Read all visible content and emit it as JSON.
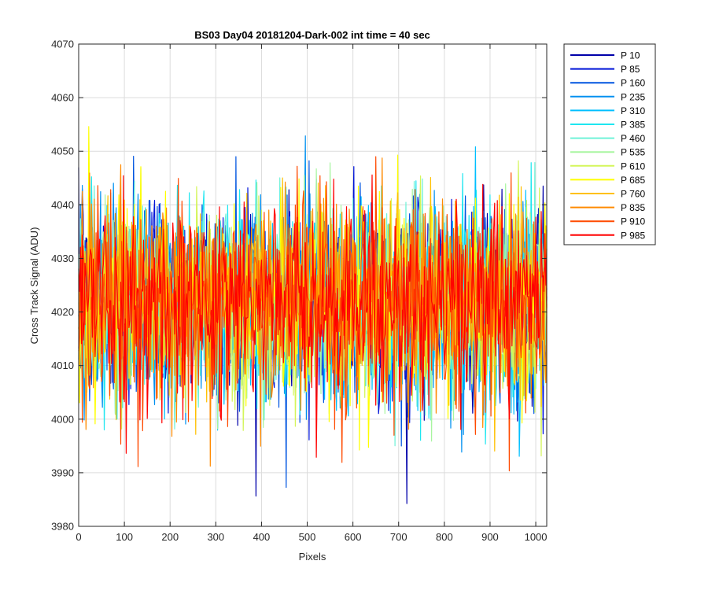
{
  "chart_data": {
    "type": "line",
    "title": "BS03 Day04 20181204-Dark-002 int time = 40 sec",
    "xlabel": "Pixels",
    "ylabel": "Cross Track Signal (ADU)",
    "xlim": [
      0,
      1024
    ],
    "ylim": [
      3980,
      4070
    ],
    "xticks": [
      "0",
      "100",
      "200",
      "300",
      "400",
      "500",
      "600",
      "700",
      "800",
      "900",
      "1000"
    ],
    "yticks": [
      "3980",
      "3990",
      "4000",
      "4010",
      "4020",
      "4030",
      "4040",
      "4050",
      "4060",
      "4070"
    ],
    "grid": true,
    "legend_position": "outside-right",
    "noise_mean": 4022,
    "noise_std": 9,
    "series": [
      {
        "name": "P 10",
        "color": "#0000aa"
      },
      {
        "name": "P 85",
        "color": "#0014d8"
      },
      {
        "name": "P 160",
        "color": "#0055e0"
      },
      {
        "name": "P 235",
        "color": "#0090f0"
      },
      {
        "name": "P 310",
        "color": "#00bfff"
      },
      {
        "name": "P 385",
        "color": "#1ee6f0"
      },
      {
        "name": "P 460",
        "color": "#6ff2d8"
      },
      {
        "name": "P 535",
        "color": "#a8f5a0"
      },
      {
        "name": "P 610",
        "color": "#d4f55a"
      },
      {
        "name": "P 685",
        "color": "#ffff00"
      },
      {
        "name": "P 760",
        "color": "#ffc000"
      },
      {
        "name": "P 835",
        "color": "#ff8a00"
      },
      {
        "name": "P 910",
        "color": "#ff4a00"
      },
      {
        "name": "P 985",
        "color": "#ff0000"
      }
    ]
  }
}
